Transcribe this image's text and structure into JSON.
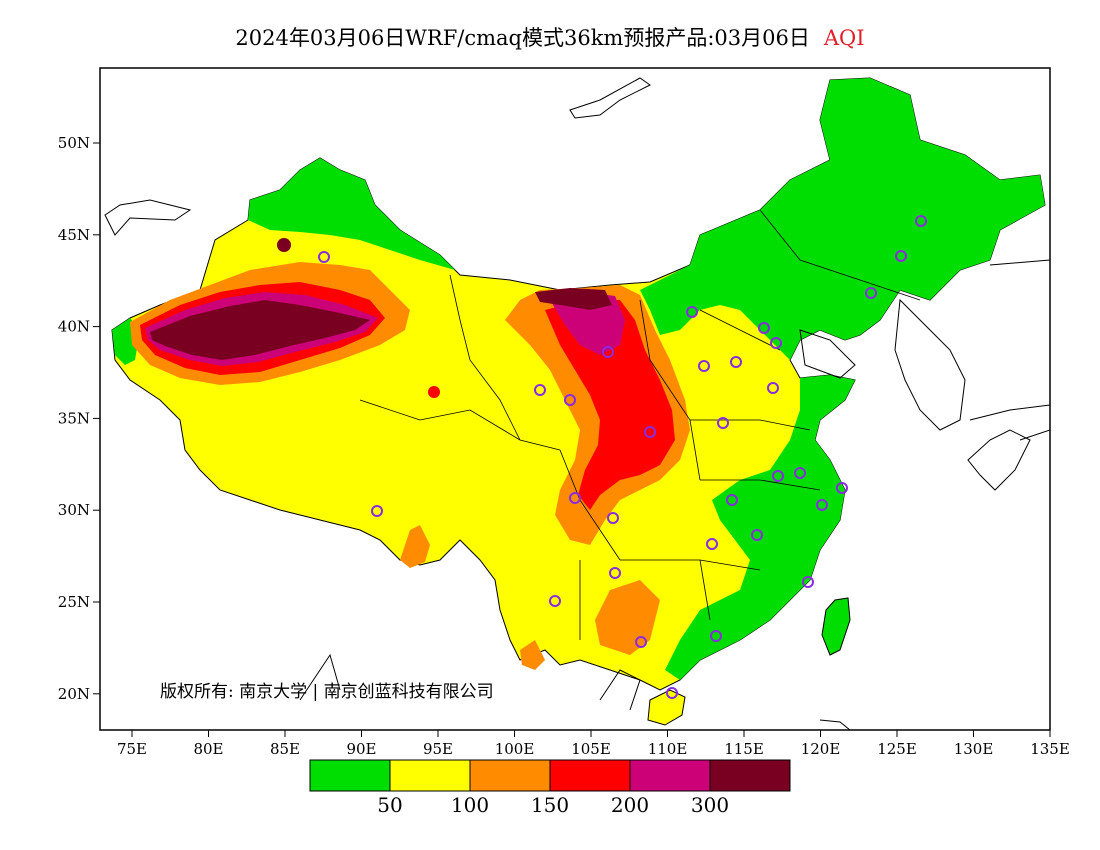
{
  "title": {
    "main": "2024年03月06日WRF/cmaq模式36km预报产品:03月06日",
    "variable": "AQI"
  },
  "axes": {
    "lon_ticks": [
      "75E",
      "80E",
      "85E",
      "90E",
      "95E",
      "100E",
      "105E",
      "110E",
      "115E",
      "120E",
      "125E",
      "130E",
      "135E"
    ],
    "lat_ticks": [
      "50N",
      "45N",
      "40N",
      "35N",
      "30N",
      "25N",
      "20N"
    ]
  },
  "colorbar": {
    "colors": [
      "#00dd00",
      "#ffff00",
      "#ff8c00",
      "#ff0000",
      "#cc0077",
      "#7a0022"
    ],
    "labels": [
      "50",
      "100",
      "150",
      "200",
      "300"
    ]
  },
  "copyright": "版权所有: 南京大学 | 南京创蓝科技有限公司",
  "legend_colors": {
    "good": "#00dd00",
    "moderate": "#ffff00",
    "unhealthy_sensitive": "#ff8c00",
    "unhealthy": "#ff0000",
    "very_unhealthy": "#cc0077",
    "hazardous": "#7a0022",
    "station_marker": "#8a2be2"
  }
}
